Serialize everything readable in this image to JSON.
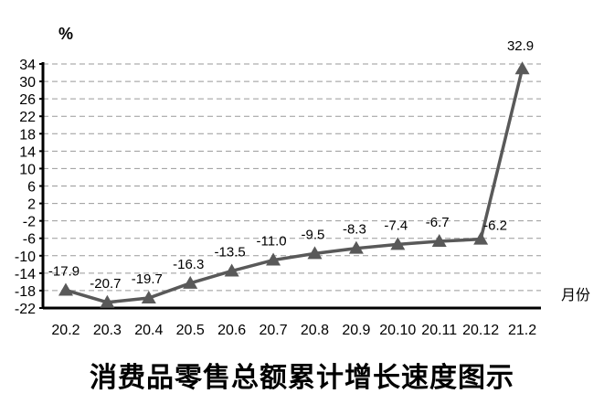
{
  "chart_data": {
    "type": "line",
    "title": "消费品零售总额累计增长速度图示",
    "ylabel": "%",
    "xlabel": "月份",
    "categories": [
      "20.2",
      "20.3",
      "20.4",
      "20.5",
      "20.6",
      "20.7",
      "20.8",
      "20.9",
      "20.10",
      "20.11",
      "20.12",
      "21.2"
    ],
    "values": [
      -17.9,
      -20.7,
      -19.7,
      -16.3,
      -13.5,
      -11.0,
      -9.5,
      -8.3,
      -7.4,
      -6.7,
      -6.2,
      32.9
    ],
    "data_labels": [
      "-17.9",
      "-20.7",
      "-19.7",
      "-16.3",
      "-13.5",
      "-11.0",
      "-9.5",
      "-8.3",
      "-7.4",
      "-6.7",
      "-6.2",
      "32.9"
    ],
    "ylim": [
      -22,
      34
    ],
    "yticks": [
      34,
      30,
      26,
      22,
      18,
      14,
      10,
      6,
      2,
      -2,
      -6,
      -10,
      -14,
      -18,
      -22
    ],
    "grid": true,
    "marker": "triangle",
    "line_color": "#595959"
  }
}
